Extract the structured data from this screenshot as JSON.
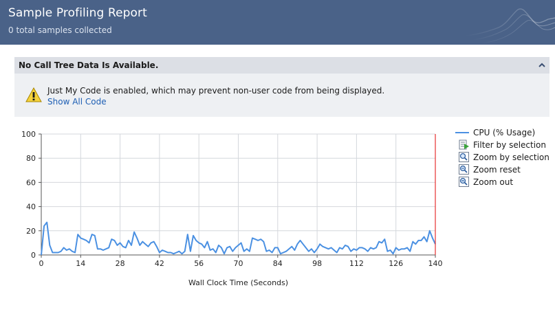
{
  "header": {
    "title": "Sample Profiling Report",
    "subtitle": "0 total samples collected"
  },
  "panel": {
    "title": "No Call Tree Data Is Available.",
    "warning_message": "Just My Code is enabled, which may prevent non-user code from being displayed.",
    "link_label": "Show All Code",
    "icons": {
      "warning": "warning-icon",
      "collapse": "chevron-up-icon"
    }
  },
  "legend": {
    "series_label": "CPU (% Usage)",
    "actions": [
      {
        "label": "Filter by selection",
        "icon": "filter-icon"
      },
      {
        "label": "Zoom by selection",
        "icon": "zoom-selection-icon"
      },
      {
        "label": "Zoom reset",
        "icon": "zoom-reset-icon"
      },
      {
        "label": "Zoom out",
        "icon": "zoom-out-icon"
      }
    ]
  },
  "chart_data": {
    "type": "line",
    "xlabel": "Wall Clock Time (Seconds)",
    "ylabel": "",
    "xlim": [
      0,
      140
    ],
    "ylim": [
      0,
      100
    ],
    "xticks": [
      0,
      14,
      28,
      42,
      56,
      70,
      84,
      98,
      112,
      126,
      140
    ],
    "yticks": [
      0,
      20,
      40,
      60,
      80,
      100
    ],
    "grid": true,
    "legend_position": "right",
    "series_color": "#4a90e2",
    "marker_color": "#e53030",
    "series": [
      {
        "name": "CPU (% Usage)",
        "x": [
          0,
          1,
          2,
          3,
          4,
          5,
          6,
          7,
          8,
          9,
          10,
          11,
          12,
          13,
          14,
          15,
          16,
          17,
          18,
          19,
          20,
          21,
          22,
          23,
          24,
          25,
          26,
          27,
          28,
          29,
          30,
          31,
          32,
          33,
          34,
          35,
          36,
          37,
          38,
          39,
          40,
          41,
          42,
          43,
          44,
          45,
          46,
          47,
          48,
          49,
          50,
          51,
          52,
          53,
          54,
          55,
          56,
          57,
          58,
          59,
          60,
          61,
          62,
          63,
          64,
          65,
          66,
          67,
          68,
          69,
          70,
          71,
          72,
          73,
          74,
          75,
          76,
          77,
          78,
          79,
          80,
          81,
          82,
          83,
          84,
          85,
          86,
          87,
          88,
          89,
          90,
          91,
          92,
          93,
          94,
          95,
          96,
          97,
          98,
          99,
          100,
          101,
          102,
          103,
          104,
          105,
          106,
          107,
          108,
          109,
          110,
          111,
          112,
          113,
          114,
          115,
          116,
          117,
          118,
          119,
          120,
          121,
          122,
          123,
          124,
          125,
          126,
          127,
          128,
          129,
          130,
          131,
          132,
          133,
          134,
          135,
          136,
          137,
          138,
          139,
          140
        ],
        "y": [
          0,
          24,
          27,
          8,
          2,
          2,
          2,
          3,
          6,
          4,
          5,
          3,
          2,
          17,
          14,
          13,
          12,
          10,
          17,
          16,
          5,
          5,
          4,
          5,
          6,
          13,
          12,
          8,
          10,
          7,
          6,
          12,
          8,
          19,
          14,
          8,
          11,
          9,
          7,
          10,
          11,
          7,
          2,
          4,
          3,
          2,
          2,
          1,
          2,
          3,
          1,
          3,
          17,
          3,
          16,
          12,
          10,
          9,
          6,
          11,
          4,
          5,
          2,
          8,
          6,
          1,
          6,
          7,
          3,
          6,
          8,
          10,
          3,
          5,
          3,
          14,
          13,
          12,
          13,
          11,
          3,
          4,
          2,
          6,
          6,
          1,
          2,
          3,
          5,
          7,
          4,
          9,
          12,
          9,
          6,
          3,
          5,
          2,
          5,
          9,
          7,
          6,
          5,
          6,
          4,
          2,
          6,
          5,
          8,
          7,
          3,
          5,
          4,
          6,
          6,
          5,
          3,
          6,
          5,
          6,
          11,
          10,
          13,
          3,
          4,
          1,
          6,
          4,
          5,
          5,
          6,
          3,
          11,
          9,
          12,
          12,
          15,
          11,
          20,
          14,
          9
        ]
      }
    ]
  }
}
